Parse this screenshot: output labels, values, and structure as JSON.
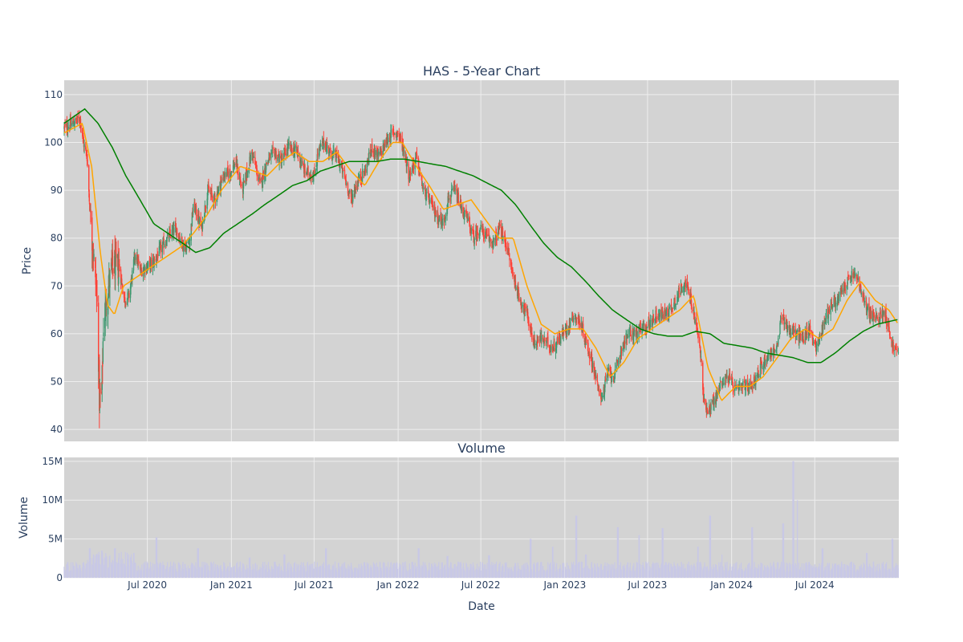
{
  "chart_data": [
    {
      "type": "candlestick",
      "title": "HAS - 5-Year Chart",
      "ylabel": "Price",
      "ylim": [
        37.5,
        113
      ],
      "y_ticks": [
        40,
        50,
        60,
        70,
        80,
        90,
        100,
        110
      ],
      "grid": true,
      "x_range": [
        "2020-01-01",
        "2025-01-01"
      ],
      "price_keypoints": [
        [
          "2020-01-01",
          103
        ],
        [
          "2020-01-20",
          104
        ],
        [
          "2020-02-05",
          105
        ],
        [
          "2020-02-12",
          100
        ],
        [
          "2020-02-20",
          97
        ],
        [
          "2020-02-25",
          88
        ],
        [
          "2020-03-02",
          80
        ],
        [
          "2020-03-09",
          72
        ],
        [
          "2020-03-13",
          66
        ],
        [
          "2020-03-16",
          55
        ],
        [
          "2020-03-18",
          46
        ],
        [
          "2020-03-23",
          47
        ],
        [
          "2020-03-27",
          62
        ],
        [
          "2020-04-03",
          68
        ],
        [
          "2020-04-15",
          74
        ],
        [
          "2020-04-30",
          74
        ],
        [
          "2020-05-12",
          67
        ],
        [
          "2020-05-22",
          68
        ],
        [
          "2020-06-05",
          77
        ],
        [
          "2020-06-15",
          73
        ],
        [
          "2020-06-30",
          74
        ],
        [
          "2020-07-15",
          75
        ],
        [
          "2020-08-01",
          78
        ],
        [
          "2020-08-15",
          80
        ],
        [
          "2020-09-01",
          82
        ],
        [
          "2020-09-20",
          78
        ],
        [
          "2020-10-01",
          79
        ],
        [
          "2020-10-10",
          87
        ],
        [
          "2020-10-28",
          82
        ],
        [
          "2020-11-10",
          90
        ],
        [
          "2020-11-25",
          88
        ],
        [
          "2020-12-15",
          93
        ],
        [
          "2020-12-31",
          94
        ],
        [
          "2021-01-10",
          96
        ],
        [
          "2021-01-25",
          90
        ],
        [
          "2021-02-05",
          94
        ],
        [
          "2021-02-15",
          98
        ],
        [
          "2021-03-05",
          91
        ],
        [
          "2021-03-20",
          96
        ],
        [
          "2021-04-05",
          98
        ],
        [
          "2021-04-20",
          96
        ],
        [
          "2021-05-05",
          99
        ],
        [
          "2021-05-25",
          98
        ],
        [
          "2021-06-10",
          94
        ],
        [
          "2021-07-01",
          93
        ],
        [
          "2021-07-10",
          98
        ],
        [
          "2021-07-22",
          100
        ],
        [
          "2021-08-05",
          98
        ],
        [
          "2021-08-20",
          97
        ],
        [
          "2021-09-05",
          93
        ],
        [
          "2021-09-20",
          88
        ],
        [
          "2021-10-05",
          92
        ],
        [
          "2021-10-20",
          94
        ],
        [
          "2021-11-05",
          99
        ],
        [
          "2021-11-20",
          97
        ],
        [
          "2021-12-05",
          100
        ],
        [
          "2021-12-20",
          102
        ],
        [
          "2022-01-01",
          102
        ],
        [
          "2022-01-15",
          98
        ],
        [
          "2022-01-25",
          93
        ],
        [
          "2022-02-10",
          97
        ],
        [
          "2022-02-25",
          90
        ],
        [
          "2022-03-10",
          88
        ],
        [
          "2022-03-25",
          85
        ],
        [
          "2022-04-10",
          83
        ],
        [
          "2022-04-20",
          88
        ],
        [
          "2022-05-05",
          90
        ],
        [
          "2022-05-20",
          86
        ],
        [
          "2022-06-01",
          84
        ],
        [
          "2022-06-15",
          80
        ],
        [
          "2022-06-30",
          82
        ],
        [
          "2022-07-15",
          80
        ],
        [
          "2022-07-30",
          79
        ],
        [
          "2022-08-10",
          82
        ],
        [
          "2022-08-25",
          79
        ],
        [
          "2022-09-10",
          72
        ],
        [
          "2022-09-25",
          67
        ],
        [
          "2022-10-10",
          64
        ],
        [
          "2022-10-25",
          58
        ],
        [
          "2022-11-10",
          59
        ],
        [
          "2022-11-25",
          58
        ],
        [
          "2022-12-05",
          57
        ],
        [
          "2022-12-20",
          59
        ],
        [
          "2023-01-05",
          61
        ],
        [
          "2023-01-20",
          64
        ],
        [
          "2023-02-05",
          62
        ],
        [
          "2023-02-20",
          57
        ],
        [
          "2023-03-05",
          53
        ],
        [
          "2023-03-15",
          48
        ],
        [
          "2023-03-25",
          47
        ],
        [
          "2023-04-05",
          52
        ],
        [
          "2023-04-20",
          51
        ],
        [
          "2023-05-05",
          57
        ],
        [
          "2023-05-20",
          60
        ],
        [
          "2023-06-05",
          60
        ],
        [
          "2023-06-20",
          61
        ],
        [
          "2023-07-05",
          62
        ],
        [
          "2023-07-20",
          64
        ],
        [
          "2023-08-05",
          64
        ],
        [
          "2023-08-20",
          65
        ],
        [
          "2023-09-05",
          68
        ],
        [
          "2023-09-20",
          71
        ],
        [
          "2023-10-01",
          68
        ],
        [
          "2023-10-15",
          62
        ],
        [
          "2023-10-25",
          56
        ],
        [
          "2023-11-01",
          46
        ],
        [
          "2023-11-10",
          44
        ],
        [
          "2023-11-25",
          46
        ],
        [
          "2023-12-10",
          50
        ],
        [
          "2023-12-25",
          51
        ],
        [
          "2024-01-10",
          48
        ],
        [
          "2024-01-25",
          49
        ],
        [
          "2024-02-10",
          49
        ],
        [
          "2024-02-25",
          51
        ],
        [
          "2024-03-10",
          54
        ],
        [
          "2024-03-25",
          56
        ],
        [
          "2024-04-10",
          57
        ],
        [
          "2024-04-20",
          64
        ],
        [
          "2024-05-05",
          61
        ],
        [
          "2024-05-20",
          60
        ],
        [
          "2024-06-05",
          59
        ],
        [
          "2024-06-20",
          61
        ],
        [
          "2024-07-05",
          57
        ],
        [
          "2024-07-20",
          62
        ],
        [
          "2024-08-05",
          66
        ],
        [
          "2024-08-20",
          67
        ],
        [
          "2024-09-05",
          70
        ],
        [
          "2024-09-20",
          72
        ],
        [
          "2024-10-01",
          72
        ],
        [
          "2024-10-15",
          67
        ],
        [
          "2024-11-01",
          64
        ],
        [
          "2024-11-15",
          63
        ],
        [
          "2024-12-01",
          65
        ],
        [
          "2024-12-12",
          60
        ],
        [
          "2024-12-20",
          57
        ],
        [
          "2024-12-31",
          56
        ]
      ],
      "ma50_keypoints": [
        [
          "2020-01-01",
          102
        ],
        [
          "2020-02-10",
          104
        ],
        [
          "2020-03-01",
          95
        ],
        [
          "2020-03-20",
          77
        ],
        [
          "2020-04-05",
          66
        ],
        [
          "2020-04-20",
          64
        ],
        [
          "2020-05-10",
          70
        ],
        [
          "2020-06-10",
          72
        ],
        [
          "2020-07-10",
          74
        ],
        [
          "2020-08-10",
          76
        ],
        [
          "2020-09-10",
          78
        ],
        [
          "2020-10-10",
          81
        ],
        [
          "2020-11-10",
          85
        ],
        [
          "2020-12-10",
          90
        ],
        [
          "2021-01-20",
          95
        ],
        [
          "2021-02-20",
          94
        ],
        [
          "2021-03-20",
          93
        ],
        [
          "2021-04-20",
          96
        ],
        [
          "2021-05-20",
          98
        ],
        [
          "2021-06-20",
          96
        ],
        [
          "2021-07-20",
          96
        ],
        [
          "2021-08-20",
          98
        ],
        [
          "2021-09-20",
          94
        ],
        [
          "2021-10-20",
          91
        ],
        [
          "2021-11-20",
          96
        ],
        [
          "2021-12-20",
          100
        ],
        [
          "2022-01-10",
          100
        ],
        [
          "2022-02-10",
          95
        ],
        [
          "2022-03-10",
          91
        ],
        [
          "2022-04-10",
          86
        ],
        [
          "2022-05-10",
          87
        ],
        [
          "2022-06-10",
          88
        ],
        [
          "2022-07-10",
          84
        ],
        [
          "2022-08-10",
          80
        ],
        [
          "2022-09-10",
          80
        ],
        [
          "2022-10-10",
          70
        ],
        [
          "2022-11-10",
          62
        ],
        [
          "2022-12-10",
          60
        ],
        [
          "2023-01-10",
          61
        ],
        [
          "2023-02-10",
          61
        ],
        [
          "2023-03-10",
          57
        ],
        [
          "2023-04-10",
          51
        ],
        [
          "2023-05-10",
          54
        ],
        [
          "2023-06-10",
          59
        ],
        [
          "2023-07-10",
          61
        ],
        [
          "2023-08-10",
          63
        ],
        [
          "2023-09-10",
          65
        ],
        [
          "2023-10-10",
          68
        ],
        [
          "2023-11-10",
          53
        ],
        [
          "2023-12-10",
          46
        ],
        [
          "2024-01-10",
          49
        ],
        [
          "2024-02-10",
          49
        ],
        [
          "2024-03-10",
          51
        ],
        [
          "2024-04-10",
          55
        ],
        [
          "2024-05-10",
          59
        ],
        [
          "2024-06-10",
          61
        ],
        [
          "2024-07-10",
          59
        ],
        [
          "2024-08-10",
          61
        ],
        [
          "2024-09-10",
          67
        ],
        [
          "2024-10-10",
          71
        ],
        [
          "2024-11-10",
          67
        ],
        [
          "2024-12-10",
          65
        ],
        [
          "2024-12-31",
          62
        ]
      ],
      "ma200_keypoints": [
        [
          "2020-01-01",
          104
        ],
        [
          "2020-02-15",
          107
        ],
        [
          "2020-03-15",
          104
        ],
        [
          "2020-04-15",
          99
        ],
        [
          "2020-05-15",
          93
        ],
        [
          "2020-06-15",
          88
        ],
        [
          "2020-07-15",
          83
        ],
        [
          "2020-08-15",
          81
        ],
        [
          "2020-09-15",
          79
        ],
        [
          "2020-10-15",
          77
        ],
        [
          "2020-11-15",
          78
        ],
        [
          "2020-12-15",
          81
        ],
        [
          "2021-01-15",
          83
        ],
        [
          "2021-02-15",
          85
        ],
        [
          "2021-03-15",
          87
        ],
        [
          "2021-04-15",
          89
        ],
        [
          "2021-05-15",
          91
        ],
        [
          "2021-06-15",
          92
        ],
        [
          "2021-07-15",
          94
        ],
        [
          "2021-08-15",
          95
        ],
        [
          "2021-09-15",
          96
        ],
        [
          "2021-10-15",
          96
        ],
        [
          "2021-11-15",
          96
        ],
        [
          "2021-12-15",
          96.5
        ],
        [
          "2022-01-15",
          96.5
        ],
        [
          "2022-02-15",
          96
        ],
        [
          "2022-03-15",
          95.5
        ],
        [
          "2022-04-15",
          95
        ],
        [
          "2022-05-15",
          94
        ],
        [
          "2022-06-15",
          93
        ],
        [
          "2022-07-15",
          91.5
        ],
        [
          "2022-08-15",
          90
        ],
        [
          "2022-09-15",
          87
        ],
        [
          "2022-10-15",
          83
        ],
        [
          "2022-11-15",
          79
        ],
        [
          "2022-12-15",
          76
        ],
        [
          "2023-01-15",
          74
        ],
        [
          "2023-02-15",
          71
        ],
        [
          "2023-03-15",
          68
        ],
        [
          "2023-04-15",
          65
        ],
        [
          "2023-05-15",
          63
        ],
        [
          "2023-06-15",
          61
        ],
        [
          "2023-07-15",
          60
        ],
        [
          "2023-08-15",
          59.5
        ],
        [
          "2023-09-15",
          59.5
        ],
        [
          "2023-10-15",
          60.5
        ],
        [
          "2023-11-15",
          60
        ],
        [
          "2023-12-15",
          58
        ],
        [
          "2024-01-15",
          57.5
        ],
        [
          "2024-02-15",
          57
        ],
        [
          "2024-03-15",
          56
        ],
        [
          "2024-04-15",
          55.5
        ],
        [
          "2024-05-15",
          55
        ],
        [
          "2024-06-15",
          54
        ],
        [
          "2024-07-15",
          54
        ],
        [
          "2024-08-15",
          56
        ],
        [
          "2024-09-15",
          58.5
        ],
        [
          "2024-10-15",
          60.5
        ],
        [
          "2024-11-15",
          62
        ],
        [
          "2024-12-31",
          63
        ]
      ],
      "colors": {
        "up": "#3d9970",
        "down": "#ff4136",
        "ma50": "#ffa500",
        "ma200": "#008000",
        "plot_bg": "#d3d3d3",
        "grid": "#eeeeee",
        "text": "#2a3f5f"
      }
    },
    {
      "type": "bar",
      "title": "Volume",
      "xlabel": "Date",
      "ylabel": "Volume",
      "ylim": [
        0,
        15500000
      ],
      "y_ticks": [
        {
          "value": 0,
          "label": "0"
        },
        {
          "value": 5000000,
          "label": "5M"
        },
        {
          "value": 10000000,
          "label": "10M"
        },
        {
          "value": 15000000,
          "label": "15M"
        }
      ],
      "x_ticks": [
        {
          "date": "2020-07-01",
          "label": "Jul 2020"
        },
        {
          "date": "2021-01-01",
          "label": "Jan 2021"
        },
        {
          "date": "2021-07-01",
          "label": "Jul 2021"
        },
        {
          "date": "2022-01-01",
          "label": "Jan 2022"
        },
        {
          "date": "2022-07-01",
          "label": "Jul 2022"
        },
        {
          "date": "2023-01-01",
          "label": "Jan 2023"
        },
        {
          "date": "2023-07-01",
          "label": "Jul 2023"
        },
        {
          "date": "2024-01-01",
          "label": "Jan 2024"
        },
        {
          "date": "2024-07-01",
          "label": "Jul 2024"
        }
      ],
      "base_volume": 1500000,
      "volume_spikes": [
        [
          "2020-02-26",
          3800000
        ],
        [
          "2020-03-12",
          3000000
        ],
        [
          "2020-03-23",
          3500000
        ],
        [
          "2020-04-21",
          3800000
        ],
        [
          "2020-06-01",
          3200000
        ],
        [
          "2020-07-21",
          5200000
        ],
        [
          "2020-10-20",
          3800000
        ],
        [
          "2021-02-10",
          2600000
        ],
        [
          "2021-04-27",
          3000000
        ],
        [
          "2021-07-27",
          3800000
        ],
        [
          "2021-10-19",
          2000000
        ],
        [
          "2022-02-15",
          3800000
        ],
        [
          "2022-04-19",
          2800000
        ],
        [
          "2022-07-19",
          2900000
        ],
        [
          "2022-10-18",
          5000000
        ],
        [
          "2022-12-05",
          4000000
        ],
        [
          "2023-01-26",
          8000000
        ],
        [
          "2023-02-16",
          3000000
        ],
        [
          "2023-04-27",
          6500000
        ],
        [
          "2023-06-12",
          5500000
        ],
        [
          "2023-08-03",
          6400000
        ],
        [
          "2023-10-20",
          4000000
        ],
        [
          "2023-11-15",
          8000000
        ],
        [
          "2023-12-10",
          3000000
        ],
        [
          "2024-02-15",
          6500000
        ],
        [
          "2024-04-23",
          7000000
        ],
        [
          "2024-05-15",
          15000000
        ],
        [
          "2024-05-25",
          10000000
        ],
        [
          "2024-07-18",
          3800000
        ],
        [
          "2024-10-23",
          3200000
        ],
        [
          "2024-12-18",
          5000000
        ]
      ],
      "colors": {
        "bar": "#c8c8e6",
        "plot_bg": "#d3d3d3",
        "grid": "#eeeeee"
      }
    }
  ]
}
